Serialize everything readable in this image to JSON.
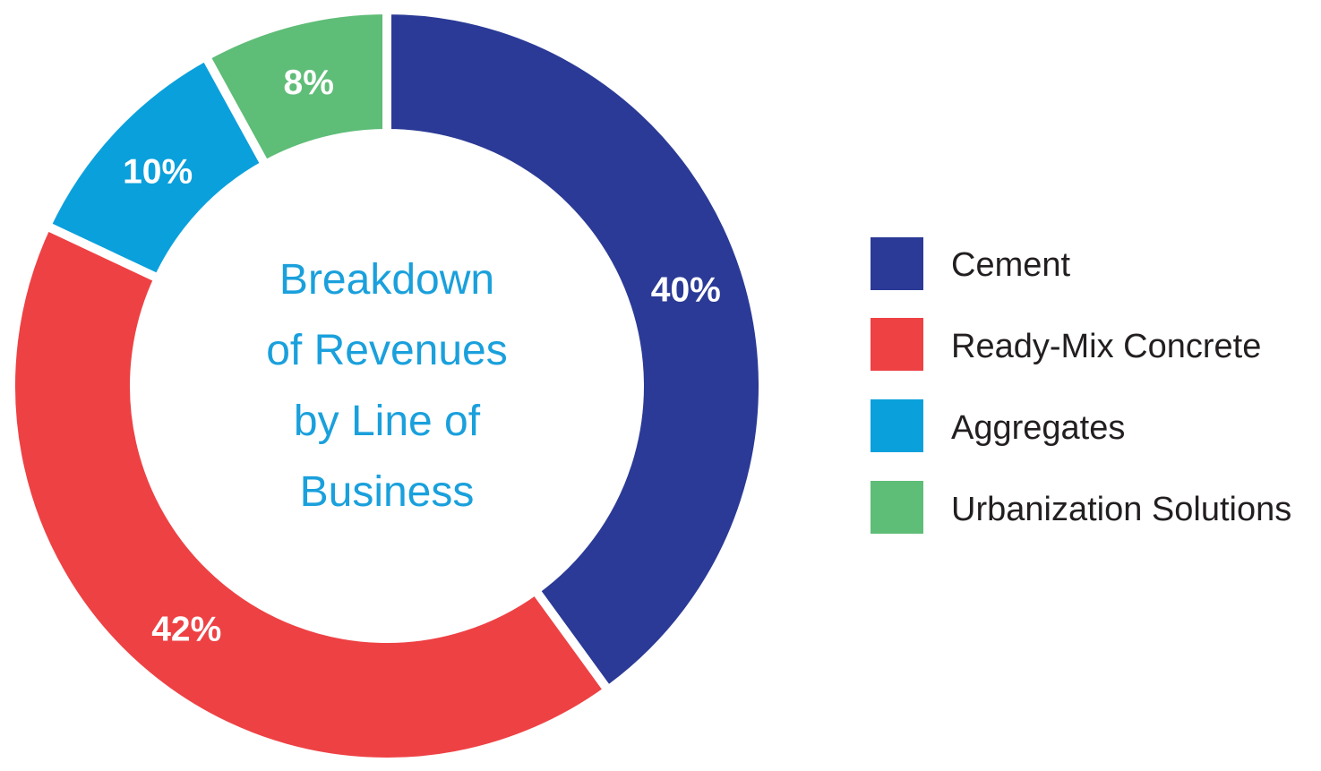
{
  "chart_data": {
    "type": "pie",
    "title_lines": [
      "Breakdown",
      "of Revenues",
      "by Line of",
      "Business"
    ],
    "categories": [
      "Cement",
      "Ready-Mix Concrete",
      "Aggregates",
      "Urbanization Solutions"
    ],
    "values": [
      40,
      42,
      10,
      8
    ],
    "labels": [
      "40%",
      "42%",
      "10%",
      "8%"
    ],
    "colors": [
      "#2b3a96",
      "#ee4144",
      "#0aa0dc",
      "#5ebd77"
    ],
    "donut": true,
    "legend_position": "right"
  }
}
